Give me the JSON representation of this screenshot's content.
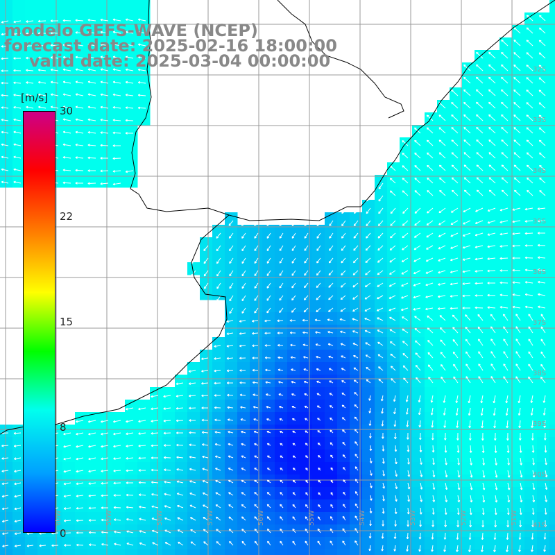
{
  "header": {
    "line1": "modelo GEFS-WAVE (NCEP)",
    "line2": "forecast date: 2025-02-16 18:00:00",
    "line3": "valid date: 2025-03-04 00:00:00"
  },
  "colorbar": {
    "unit": "[m/s]",
    "ticks": [
      "30",
      "22",
      "15",
      "8",
      "0"
    ],
    "stops": [
      "#0000ff",
      "#00a0ff",
      "#00ffee",
      "#00ff00",
      "#ffff00",
      "#ff8000",
      "#ff0000",
      "#cc0088"
    ]
  },
  "map": {
    "lat_labels": [
      "32S",
      "33S",
      "34S",
      "35S",
      "36S",
      "37S",
      "38S",
      "39S",
      "40S",
      "41S"
    ],
    "lon_labels": [
      "60W",
      "59W",
      "58W",
      "57W",
      "56W",
      "55W",
      "54W",
      "53W",
      "52W",
      "51W"
    ],
    "land_color": "#ffffff",
    "grid_color": "#999999"
  }
}
